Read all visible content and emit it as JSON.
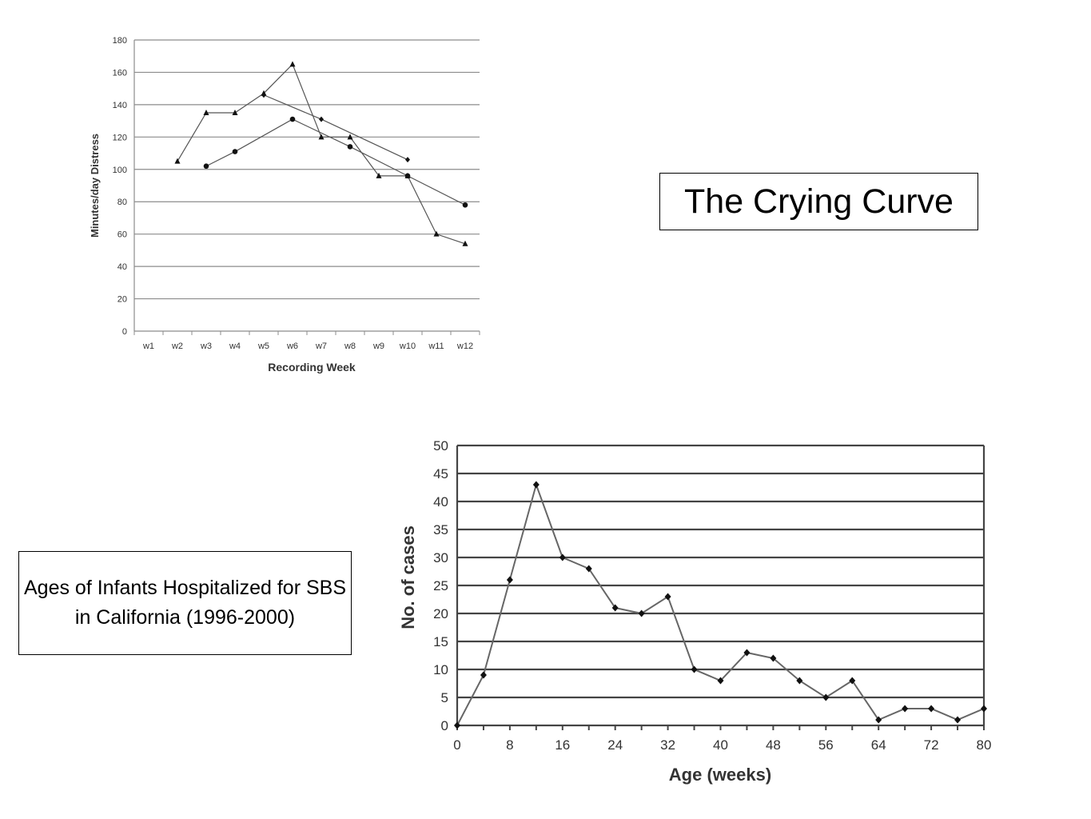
{
  "slide": {
    "title": "The Crying Curve",
    "caption": "Ages of Infants Hospitalized for SBS in California (1996-2000)"
  },
  "chart_data": [
    {
      "type": "line",
      "xlabel": "Recording Week",
      "ylabel": "Minutes/day Distress",
      "categories": [
        "w1",
        "w2",
        "w3",
        "w4",
        "w5",
        "w6",
        "w7",
        "w8",
        "w9",
        "w10",
        "w11",
        "w12"
      ],
      "ylim": [
        0,
        180
      ],
      "yticks": [
        0,
        20,
        40,
        60,
        80,
        100,
        120,
        140,
        160,
        180
      ],
      "grid": true,
      "series": [
        {
          "marker": "triangle",
          "x": [
            2,
            3,
            4,
            5,
            6,
            7,
            8,
            9,
            10,
            11,
            12
          ],
          "values": [
            105,
            135,
            135,
            147,
            165,
            120,
            120,
            96,
            96,
            60,
            54
          ]
        },
        {
          "marker": "diamond",
          "x": [
            5,
            7,
            10
          ],
          "values": [
            146,
            131,
            106
          ]
        },
        {
          "marker": "circle",
          "x": [
            3,
            4,
            6,
            8,
            10,
            12
          ],
          "values": [
            102,
            111,
            131,
            114,
            96,
            78
          ]
        }
      ]
    },
    {
      "type": "line",
      "xlabel": "Age (weeks)",
      "ylabel": "No. of cases",
      "x": [
        0,
        4,
        8,
        12,
        16,
        20,
        24,
        28,
        32,
        36,
        40,
        44,
        48,
        52,
        56,
        60,
        64,
        68,
        72,
        76,
        80
      ],
      "values": [
        0,
        9,
        26,
        43,
        30,
        28,
        21,
        20,
        23,
        10,
        8,
        13,
        12,
        8,
        5,
        8,
        1,
        3,
        3,
        1,
        3
      ],
      "xlim": [
        0,
        80
      ],
      "xticks": [
        0,
        8,
        16,
        24,
        32,
        40,
        48,
        56,
        64,
        72,
        80
      ],
      "ylim": [
        0,
        50
      ],
      "yticks": [
        0,
        5,
        10,
        15,
        20,
        25,
        30,
        35,
        40,
        45,
        50
      ],
      "grid": true
    }
  ]
}
